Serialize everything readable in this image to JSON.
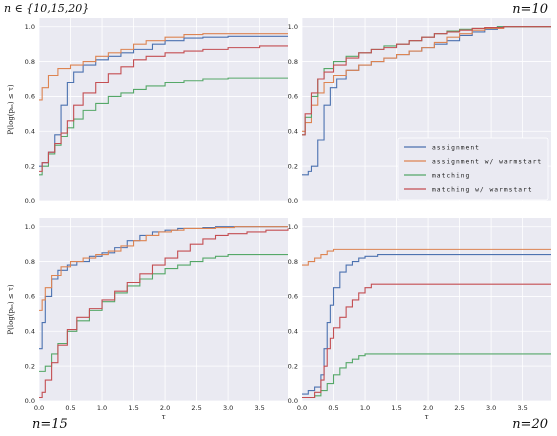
{
  "figure": {
    "top_left_title": "n ∈ {10,15,20}",
    "xlabel": "τ",
    "ylabel": "P(log(pₖₛ) ≤ τ)"
  },
  "colors": {
    "assignment": "#4c72b0",
    "assignment w/ warmstart": "#dd8452",
    "matching": "#55a868",
    "matching w/ warmstart": "#c44e52",
    "panel_bg": "#eaeaf2",
    "grid": "#ffffff"
  },
  "legend": {
    "placement": "center-right of top-right panel",
    "items": [
      "assignment",
      "assignment w/ warmstart",
      "matching",
      "matching w/ warmstart"
    ]
  },
  "chart_data": [
    {
      "type": "line",
      "title": "n ∈ {10,15,20}",
      "xlabel": "",
      "ylabel": "P(log(pₖₛ) ≤ τ)",
      "xlim": [
        0,
        3.95
      ],
      "ylim": [
        0,
        1.05
      ],
      "grid": true,
      "xticks": [
        0.0,
        0.5,
        1.0,
        1.5,
        2.0,
        2.5,
        3.0,
        3.5
      ],
      "yticks": [
        0.0,
        0.2,
        0.4,
        0.6,
        0.8,
        1.0
      ],
      "show_xtick_labels": false,
      "series": [
        {
          "name": "assignment",
          "x": [
            0,
            0.05,
            0.15,
            0.25,
            0.35,
            0.45,
            0.55,
            0.7,
            0.9,
            1.1,
            1.3,
            1.5,
            1.8,
            2.0,
            2.3,
            2.6,
            3.0,
            3.5,
            3.95
          ],
          "y": [
            0.2,
            0.22,
            0.28,
            0.38,
            0.55,
            0.68,
            0.74,
            0.78,
            0.81,
            0.83,
            0.85,
            0.87,
            0.9,
            0.92,
            0.935,
            0.94,
            0.945,
            0.945,
            0.945
          ]
        },
        {
          "name": "assignment w/ warmstart",
          "x": [
            0,
            0.05,
            0.15,
            0.3,
            0.5,
            0.7,
            0.9,
            1.1,
            1.3,
            1.5,
            1.7,
            2.0,
            2.3,
            2.6,
            3.0,
            3.5,
            3.95
          ],
          "y": [
            0.58,
            0.65,
            0.72,
            0.76,
            0.78,
            0.8,
            0.83,
            0.85,
            0.87,
            0.9,
            0.92,
            0.94,
            0.955,
            0.96,
            0.96,
            0.96,
            0.96
          ]
        },
        {
          "name": "matching",
          "x": [
            0,
            0.05,
            0.15,
            0.25,
            0.35,
            0.45,
            0.55,
            0.7,
            0.9,
            1.1,
            1.3,
            1.5,
            1.7,
            2.0,
            2.3,
            2.6,
            3.0,
            3.5,
            3.95
          ],
          "y": [
            0.15,
            0.2,
            0.27,
            0.32,
            0.37,
            0.42,
            0.47,
            0.52,
            0.56,
            0.6,
            0.62,
            0.64,
            0.66,
            0.68,
            0.69,
            0.7,
            0.705,
            0.705,
            0.705
          ]
        },
        {
          "name": "matching w/ warmstart",
          "x": [
            0,
            0.05,
            0.15,
            0.25,
            0.35,
            0.45,
            0.55,
            0.7,
            0.9,
            1.1,
            1.3,
            1.5,
            1.7,
            2.0,
            2.3,
            2.6,
            3.0,
            3.5,
            3.95
          ],
          "y": [
            0.17,
            0.22,
            0.28,
            0.33,
            0.39,
            0.46,
            0.55,
            0.62,
            0.68,
            0.73,
            0.77,
            0.81,
            0.83,
            0.85,
            0.86,
            0.87,
            0.88,
            0.89,
            0.89
          ]
        }
      ]
    },
    {
      "type": "line",
      "title": "n=10",
      "xlabel": "",
      "ylabel": "",
      "xlim": [
        0,
        3.95
      ],
      "ylim": [
        0,
        1.05
      ],
      "grid": true,
      "xticks": [
        0.0,
        0.5,
        1.0,
        1.5,
        2.0,
        2.5,
        3.0,
        3.5
      ],
      "yticks": [
        0.0,
        0.2,
        0.4,
        0.6,
        0.8,
        1.0
      ],
      "show_xtick_labels": false,
      "series": [
        {
          "name": "assignment",
          "x": [
            0,
            0.1,
            0.15,
            0.25,
            0.35,
            0.45,
            0.55,
            0.7,
            0.9,
            1.1,
            1.3,
            1.5,
            1.7,
            1.9,
            2.1,
            2.3,
            2.5,
            2.7,
            2.9,
            3.1,
            3.95
          ],
          "y": [
            0.15,
            0.17,
            0.2,
            0.35,
            0.55,
            0.65,
            0.7,
            0.75,
            0.78,
            0.8,
            0.82,
            0.84,
            0.86,
            0.88,
            0.9,
            0.92,
            0.95,
            0.97,
            0.985,
            1.0,
            1.0
          ]
        },
        {
          "name": "assignment w/ warmstart",
          "x": [
            0,
            0.05,
            0.15,
            0.25,
            0.35,
            0.5,
            0.7,
            0.9,
            1.1,
            1.3,
            1.5,
            1.7,
            1.9,
            2.1,
            2.3,
            2.5,
            2.7,
            2.9,
            3.2,
            3.95
          ],
          "y": [
            0.4,
            0.45,
            0.55,
            0.62,
            0.68,
            0.72,
            0.75,
            0.78,
            0.8,
            0.82,
            0.84,
            0.86,
            0.88,
            0.91,
            0.94,
            0.96,
            0.98,
            0.99,
            1.0,
            1.0
          ]
        },
        {
          "name": "matching",
          "x": [
            0,
            0.05,
            0.15,
            0.25,
            0.35,
            0.5,
            0.7,
            0.9,
            1.1,
            1.3,
            1.5,
            1.7,
            1.9,
            2.1,
            2.3,
            2.5,
            2.7,
            2.9,
            3.1,
            3.95
          ],
          "y": [
            0.38,
            0.48,
            0.6,
            0.7,
            0.76,
            0.8,
            0.83,
            0.85,
            0.87,
            0.89,
            0.9,
            0.92,
            0.94,
            0.96,
            0.975,
            0.985,
            0.99,
            0.995,
            1.0,
            1.0
          ]
        },
        {
          "name": "matching w/ warmstart",
          "x": [
            0,
            0.05,
            0.15,
            0.25,
            0.35,
            0.5,
            0.7,
            0.9,
            1.1,
            1.3,
            1.5,
            1.7,
            1.9,
            2.1,
            2.3,
            2.5,
            2.7,
            2.9,
            3.2,
            3.95
          ],
          "y": [
            0.38,
            0.5,
            0.62,
            0.7,
            0.74,
            0.78,
            0.82,
            0.85,
            0.87,
            0.88,
            0.9,
            0.92,
            0.94,
            0.96,
            0.97,
            0.98,
            0.99,
            0.995,
            1.0,
            1.0
          ]
        }
      ]
    },
    {
      "type": "line",
      "title": "n=15",
      "xlabel": "τ",
      "ylabel": "P(log(pₖₛ) ≤ τ)",
      "xlim": [
        0,
        3.95
      ],
      "ylim": [
        0,
        1.05
      ],
      "grid": true,
      "xticks": [
        0.0,
        0.5,
        1.0,
        1.5,
        2.0,
        2.5,
        3.0,
        3.5
      ],
      "yticks": [
        0.0,
        0.2,
        0.4,
        0.6,
        0.8,
        1.0
      ],
      "show_xtick_labels": true,
      "series": [
        {
          "name": "assignment",
          "x": [
            0,
            0.05,
            0.1,
            0.2,
            0.3,
            0.45,
            0.6,
            0.8,
            1.0,
            1.2,
            1.4,
            1.6,
            1.8,
            2.0,
            2.2,
            2.4,
            2.6,
            2.8,
            3.0,
            3.95
          ],
          "y": [
            0.3,
            0.45,
            0.6,
            0.7,
            0.75,
            0.78,
            0.8,
            0.83,
            0.85,
            0.88,
            0.92,
            0.95,
            0.97,
            0.98,
            0.99,
            0.99,
            0.995,
            1.0,
            1.0,
            1.0
          ]
        },
        {
          "name": "assignment w/ warmstart",
          "x": [
            0,
            0.05,
            0.1,
            0.2,
            0.35,
            0.5,
            0.7,
            0.9,
            1.1,
            1.3,
            1.5,
            1.7,
            1.9,
            2.1,
            2.3,
            2.5,
            2.8,
            3.1,
            3.95
          ],
          "y": [
            0.52,
            0.58,
            0.65,
            0.72,
            0.77,
            0.8,
            0.82,
            0.84,
            0.86,
            0.89,
            0.92,
            0.95,
            0.97,
            0.98,
            0.99,
            0.99,
            0.995,
            1.0,
            1.0
          ]
        },
        {
          "name": "matching",
          "x": [
            0,
            0.1,
            0.2,
            0.3,
            0.45,
            0.6,
            0.8,
            1.0,
            1.2,
            1.4,
            1.6,
            1.8,
            2.0,
            2.2,
            2.4,
            2.6,
            2.8,
            3.0,
            3.3,
            3.95
          ],
          "y": [
            0.17,
            0.2,
            0.27,
            0.33,
            0.4,
            0.46,
            0.52,
            0.57,
            0.62,
            0.66,
            0.7,
            0.73,
            0.76,
            0.78,
            0.8,
            0.82,
            0.83,
            0.84,
            0.84,
            0.84
          ]
        },
        {
          "name": "matching w/ warmstart",
          "x": [
            0,
            0.05,
            0.1,
            0.2,
            0.3,
            0.45,
            0.6,
            0.8,
            1.0,
            1.2,
            1.4,
            1.6,
            1.8,
            2.0,
            2.2,
            2.4,
            2.6,
            2.8,
            3.0,
            3.3,
            3.6,
            3.95
          ],
          "y": [
            0.02,
            0.05,
            0.12,
            0.22,
            0.32,
            0.41,
            0.48,
            0.53,
            0.58,
            0.63,
            0.68,
            0.73,
            0.78,
            0.82,
            0.86,
            0.9,
            0.93,
            0.95,
            0.96,
            0.97,
            0.98,
            0.99
          ]
        }
      ]
    },
    {
      "type": "line",
      "title": "n=20",
      "xlabel": "τ",
      "ylabel": "",
      "xlim": [
        0,
        3.95
      ],
      "ylim": [
        0,
        1.05
      ],
      "grid": true,
      "xticks": [
        0.0,
        0.5,
        1.0,
        1.5,
        2.0,
        2.5,
        3.0,
        3.5
      ],
      "yticks": [
        0.0,
        0.2,
        0.4,
        0.6,
        0.8,
        1.0
      ],
      "show_xtick_labels": true,
      "series": [
        {
          "name": "assignment",
          "x": [
            0,
            0.1,
            0.2,
            0.3,
            0.35,
            0.4,
            0.45,
            0.5,
            0.6,
            0.7,
            0.8,
            0.9,
            1.0,
            1.2,
            1.5,
            2.0,
            3.0,
            3.95
          ],
          "y": [
            0.04,
            0.06,
            0.08,
            0.15,
            0.3,
            0.45,
            0.55,
            0.65,
            0.74,
            0.78,
            0.8,
            0.82,
            0.83,
            0.84,
            0.84,
            0.84,
            0.84,
            0.84
          ]
        },
        {
          "name": "assignment w/ warmstart",
          "x": [
            0,
            0.1,
            0.2,
            0.3,
            0.4,
            0.5,
            0.7,
            1.0,
            2.0,
            3.0,
            3.95
          ],
          "y": [
            0.78,
            0.8,
            0.82,
            0.84,
            0.86,
            0.87,
            0.87,
            0.87,
            0.87,
            0.87,
            0.87
          ]
        },
        {
          "name": "matching",
          "x": [
            0,
            0.2,
            0.3,
            0.4,
            0.5,
            0.6,
            0.7,
            0.8,
            0.9,
            1.0,
            1.2,
            1.5,
            2.0,
            3.0,
            3.95
          ],
          "y": [
            0.02,
            0.03,
            0.06,
            0.1,
            0.15,
            0.19,
            0.22,
            0.24,
            0.26,
            0.27,
            0.27,
            0.27,
            0.27,
            0.27,
            0.27
          ]
        },
        {
          "name": "matching w/ warmstart",
          "x": [
            0,
            0.2,
            0.3,
            0.35,
            0.4,
            0.45,
            0.5,
            0.6,
            0.7,
            0.8,
            0.9,
            1.0,
            1.1,
            1.2,
            1.5,
            2.0,
            3.0,
            3.95
          ],
          "y": [
            0.02,
            0.05,
            0.12,
            0.2,
            0.3,
            0.36,
            0.42,
            0.48,
            0.54,
            0.58,
            0.62,
            0.65,
            0.67,
            0.67,
            0.67,
            0.67,
            0.67,
            0.67
          ]
        }
      ]
    }
  ]
}
